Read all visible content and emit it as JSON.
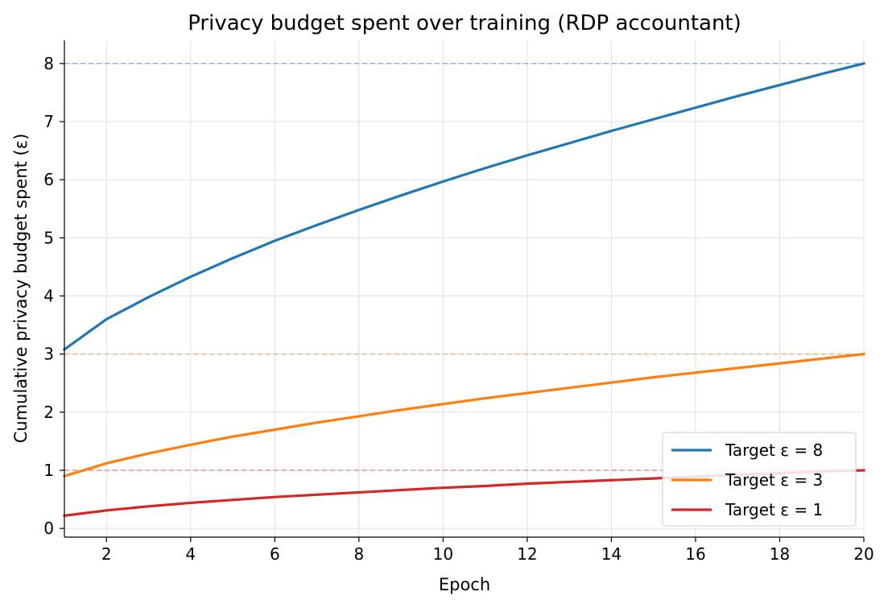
{
  "chart_data": {
    "type": "line",
    "title": "Privacy budget spent over training (RDP accountant)",
    "xlabel": "Epoch",
    "ylabel": "Cumulative privacy budget spent (ε)",
    "xlim": [
      1,
      20
    ],
    "ylim": [
      -0.15,
      8.4
    ],
    "xticks": [
      2,
      4,
      6,
      8,
      10,
      12,
      14,
      16,
      18,
      20
    ],
    "yticks": [
      0,
      1,
      2,
      3,
      4,
      5,
      6,
      7,
      8
    ],
    "grid": true,
    "legend_position": "lower-right",
    "x": [
      1,
      2,
      3,
      4,
      5,
      6,
      7,
      8,
      9,
      10,
      11,
      12,
      13,
      14,
      15,
      16,
      17,
      18,
      19,
      20
    ],
    "series": [
      {
        "name": "Target ε = 8",
        "color": "#1f77b4",
        "target": 8,
        "values": [
          3.08,
          3.6,
          3.98,
          4.33,
          4.65,
          4.95,
          5.22,
          5.48,
          5.73,
          5.97,
          6.2,
          6.42,
          6.63,
          6.84,
          7.04,
          7.24,
          7.44,
          7.63,
          7.82,
          8.0
        ]
      },
      {
        "name": "Target ε = 3",
        "color": "#ff7f0e",
        "target": 3,
        "values": [
          0.9,
          1.12,
          1.29,
          1.44,
          1.58,
          1.7,
          1.82,
          1.93,
          2.04,
          2.14,
          2.24,
          2.33,
          2.42,
          2.51,
          2.6,
          2.68,
          2.76,
          2.84,
          2.92,
          3.0
        ]
      },
      {
        "name": "Target ε = 1",
        "color": "#d62728",
        "target": 1,
        "values": [
          0.22,
          0.31,
          0.38,
          0.44,
          0.49,
          0.54,
          0.58,
          0.62,
          0.66,
          0.7,
          0.73,
          0.77,
          0.8,
          0.83,
          0.86,
          0.89,
          0.92,
          0.95,
          0.98,
          1.0
        ]
      }
    ]
  }
}
